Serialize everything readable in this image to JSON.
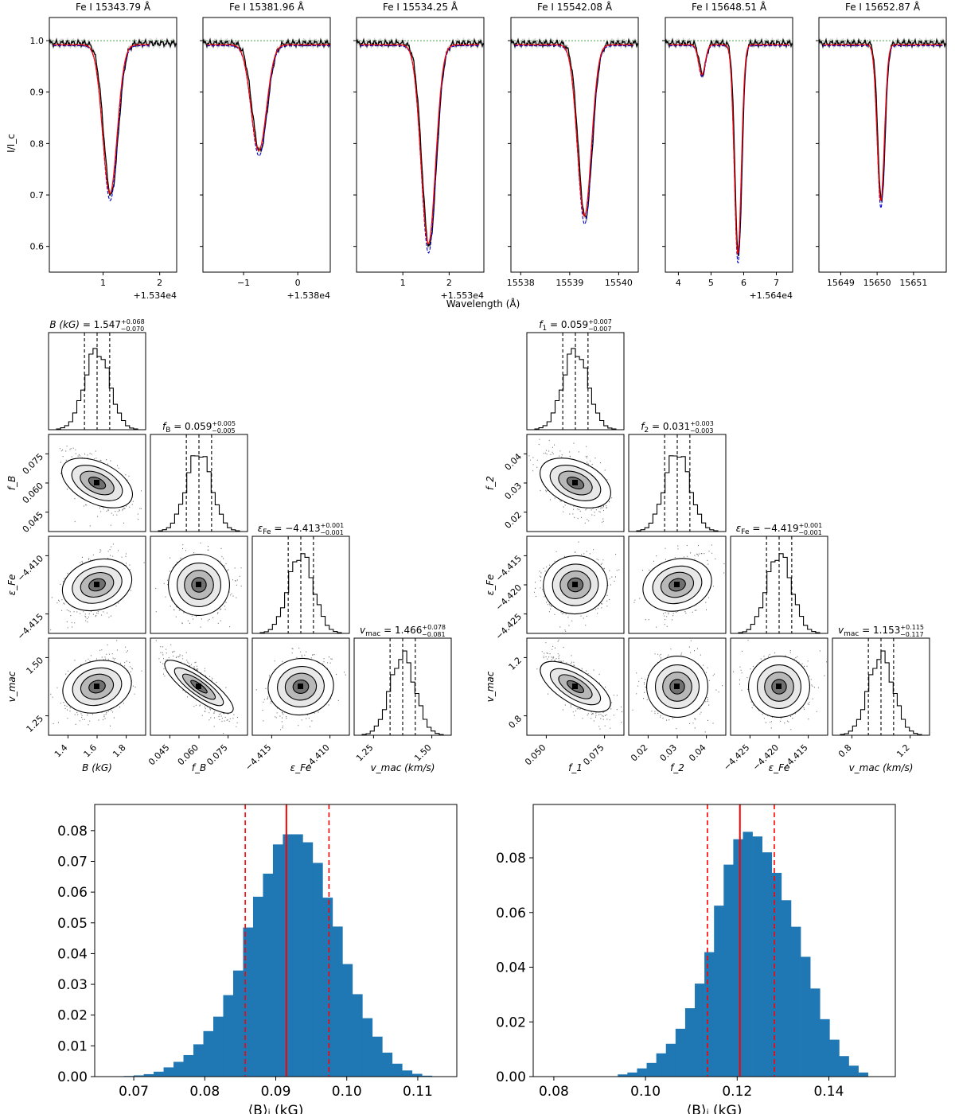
{
  "spectra": {
    "ylabel": "I/I_c",
    "xlabel": "Wavelength (Å)",
    "yticks": [
      "0.6",
      "0.7",
      "0.8",
      "0.9",
      "1.0"
    ],
    "ylim": [
      0.55,
      1.045
    ],
    "colors": {
      "observed": "#000000",
      "model_red": "#ff0000",
      "model_blue": "#0000cc",
      "continuum": "#008000",
      "band": "#bbbbbb"
    },
    "panels": [
      {
        "title": "Fe I 15343.79 Å",
        "offset_label": "+1.534e4",
        "xlim": [
          0.05,
          2.3
        ],
        "xticks": [
          1,
          2
        ],
        "xtick_labels": [
          "1",
          "2"
        ],
        "line_centers": [
          1.12
        ],
        "depths": [
          0.295
        ],
        "widths": [
          0.18
        ],
        "model_end": 1.82
      },
      {
        "title": "Fe I 15381.96 Å",
        "offset_label": "+1.538e4",
        "xlim": [
          -1.75,
          0.6
        ],
        "xticks": [
          -1,
          0
        ],
        "xtick_labels": [
          "−1",
          "0"
        ],
        "line_centers": [
          -0.72
        ],
        "depths": [
          0.21
        ],
        "widths": [
          0.2
        ],
        "model_end": 0.6
      },
      {
        "title": "Fe I 15534.25 Å",
        "offset_label": "+1.553e4",
        "xlim": [
          0.0,
          2.75
        ],
        "xticks": [
          1,
          2
        ],
        "xtick_labels": [
          "1",
          "2"
        ],
        "line_centers": [
          1.55
        ],
        "depths": [
          0.395
        ],
        "widths": [
          0.22
        ],
        "model_end": 2.65
      },
      {
        "title": "Fe I 15542.08 Å",
        "offset_label": "",
        "xlim": [
          15537.8,
          15540.4
        ],
        "xticks": [
          15538,
          15539,
          15540
        ],
        "xtick_labels": [
          "15538",
          "15539",
          "15540"
        ],
        "line_centers": [
          15539.3
        ],
        "depths": [
          0.34
        ],
        "widths": [
          0.2
        ],
        "model_end": 15540.3
      },
      {
        "title": "Fe I 15648.51 Å",
        "offset_label": "+1.564e4",
        "xlim": [
          3.6,
          7.5
        ],
        "xticks": [
          4,
          5,
          6,
          7
        ],
        "xtick_labels": [
          "4",
          "5",
          "6",
          "7"
        ],
        "line_centers": [
          4.72,
          5.82
        ],
        "depths": [
          0.06,
          0.415
        ],
        "widths": [
          0.14,
          0.15
        ],
        "model_end": 7.4
      },
      {
        "title": "Fe I 15652.87 Å",
        "offset_label": "",
        "xlim": [
          15648.4,
          15651.9
        ],
        "xticks": [
          15649,
          15650,
          15651
        ],
        "xtick_labels": [
          "15649",
          "15650",
          "15651"
        ],
        "line_centers": [
          15650.1
        ],
        "depths": [
          0.31
        ],
        "widths": [
          0.14
        ],
        "model_end": 15651.8
      }
    ]
  },
  "corner_left": {
    "diag_titles": [
      {
        "name": "B (kG)",
        "value": "1.547",
        "plus": "+0.068",
        "minus": "−0.070"
      },
      {
        "name": "f_B",
        "value": "0.059",
        "plus": "+0.005",
        "minus": "−0.005"
      },
      {
        "name": "ε_Fe",
        "value": "−4.413",
        "plus": "+0.001",
        "minus": "−0.001"
      },
      {
        "name": "v_mac",
        "value": "1.466",
        "plus": "+0.078",
        "minus": "−0.081"
      }
    ],
    "col_labels": [
      "B (kG)",
      "f_B",
      "ε_Fe",
      "v_mac (km/s)"
    ],
    "row_labels": [
      "f_B",
      "ε_Fe",
      "v_mac"
    ],
    "col_ticks": [
      [
        "1.4",
        "1.6",
        "1.8"
      ],
      [
        "0.045",
        "0.060",
        "0.075"
      ],
      [
        "−4.415",
        "−4.410"
      ],
      [
        "1.25",
        "1.50"
      ]
    ],
    "row_ticks": [
      [
        "0.075",
        "0.060",
        "0.045"
      ],
      [
        "−4.410",
        "−4.415"
      ],
      [
        "1.50",
        "1.25"
      ]
    ],
    "correlations": [
      [
        -0.55
      ],
      [
        0.35,
        0.0
      ],
      [
        0.3,
        -0.85,
        0.15
      ]
    ]
  },
  "corner_right": {
    "diag_titles": [
      {
        "name": "f_1",
        "value": "0.059",
        "plus": "+0.007",
        "minus": "−0.007"
      },
      {
        "name": "f_2",
        "value": "0.031",
        "plus": "+0.003",
        "minus": "−0.003"
      },
      {
        "name": "ε_Fe",
        "value": "−4.419",
        "plus": "+0.001",
        "minus": "−0.001"
      },
      {
        "name": "v_mac",
        "value": "1.153",
        "plus": "+0.115",
        "minus": "−0.117"
      }
    ],
    "col_labels": [
      "f_1",
      "f_2",
      "ε_Fe",
      "v_mac (km/s)"
    ],
    "row_labels": [
      "f_2",
      "ε_Fe",
      "v_mac"
    ],
    "col_ticks": [
      [
        "0.050",
        "0.075"
      ],
      [
        "0.02",
        "0.03",
        "0.04"
      ],
      [
        "−4.425",
        "−4.420",
        "−4.415"
      ],
      [
        "0.8",
        "1.2"
      ]
    ],
    "row_ticks": [
      [
        "0.04",
        "0.03",
        "0.02"
      ],
      [
        "−4.415",
        "−4.420",
        "−4.425"
      ],
      [
        "1.2",
        "0.8"
      ]
    ],
    "correlations": [
      [
        -0.5
      ],
      [
        0.1,
        0.3
      ],
      [
        -0.7,
        0.0,
        0.0
      ]
    ]
  },
  "chart_data": [
    {
      "type": "bar",
      "title": "",
      "xlabel": "⟨B⟩_I (kG)",
      "ylabel": "",
      "xlim": [
        0.0645,
        0.1155
      ],
      "ylim": [
        0,
        0.0885
      ],
      "xticks": [
        0.07,
        0.08,
        0.09,
        0.1,
        0.11
      ],
      "yticks": [
        0.0,
        0.01,
        0.02,
        0.03,
        0.04,
        0.05,
        0.06,
        0.07,
        0.08
      ],
      "x": [
        0.0693,
        0.0707,
        0.0721,
        0.0735,
        0.0749,
        0.0763,
        0.0777,
        0.0791,
        0.0805,
        0.0819,
        0.0833,
        0.0847,
        0.0861,
        0.0875,
        0.0889,
        0.0903,
        0.0917,
        0.0931,
        0.0945,
        0.0959,
        0.0973,
        0.0987,
        0.1001,
        0.1015,
        0.1029,
        0.1043,
        0.1057,
        0.1071,
        0.1085,
        0.1099,
        0.1113
      ],
      "values": [
        0.0002,
        0.0004,
        0.0008,
        0.0016,
        0.003,
        0.0048,
        0.007,
        0.0105,
        0.0148,
        0.0195,
        0.0265,
        0.0345,
        0.0485,
        0.0585,
        0.066,
        0.0755,
        0.0788,
        0.0788,
        0.0762,
        0.0695,
        0.0582,
        0.0488,
        0.0366,
        0.0268,
        0.019,
        0.013,
        0.0078,
        0.0042,
        0.002,
        0.0009,
        0.0003
      ],
      "median": 0.0915,
      "lower": 0.0857,
      "upper": 0.0975,
      "color": "#1f77b4",
      "line_color": "#ff0000"
    },
    {
      "type": "bar",
      "title": "",
      "xlabel": "⟨B⟩_I (kG)",
      "ylabel": "",
      "xlim": [
        0.0755,
        0.1545
      ],
      "ylim": [
        0,
        0.0995
      ],
      "xticks": [
        0.08,
        0.1,
        0.12,
        0.14
      ],
      "yticks": [
        0.0,
        0.02,
        0.04,
        0.06,
        0.08
      ],
      "x": [
        0.095,
        0.0971,
        0.0992,
        0.1013,
        0.1034,
        0.1055,
        0.1076,
        0.1097,
        0.1118,
        0.1139,
        0.116,
        0.1181,
        0.1202,
        0.1223,
        0.1244,
        0.1265,
        0.1286,
        0.1307,
        0.1328,
        0.1349,
        0.137,
        0.1391,
        0.1412,
        0.1433,
        0.1454,
        0.1475
      ],
      "values": [
        0.0008,
        0.0015,
        0.003,
        0.005,
        0.0085,
        0.012,
        0.0175,
        0.025,
        0.034,
        0.0455,
        0.0625,
        0.0775,
        0.0868,
        0.0895,
        0.0878,
        0.082,
        0.0745,
        0.0645,
        0.0548,
        0.0438,
        0.0322,
        0.021,
        0.0135,
        0.0075,
        0.004,
        0.0015
      ],
      "median": 0.1206,
      "lower": 0.1135,
      "upper": 0.1281,
      "color": "#1f77b4",
      "line_color": "#ff0000"
    }
  ]
}
